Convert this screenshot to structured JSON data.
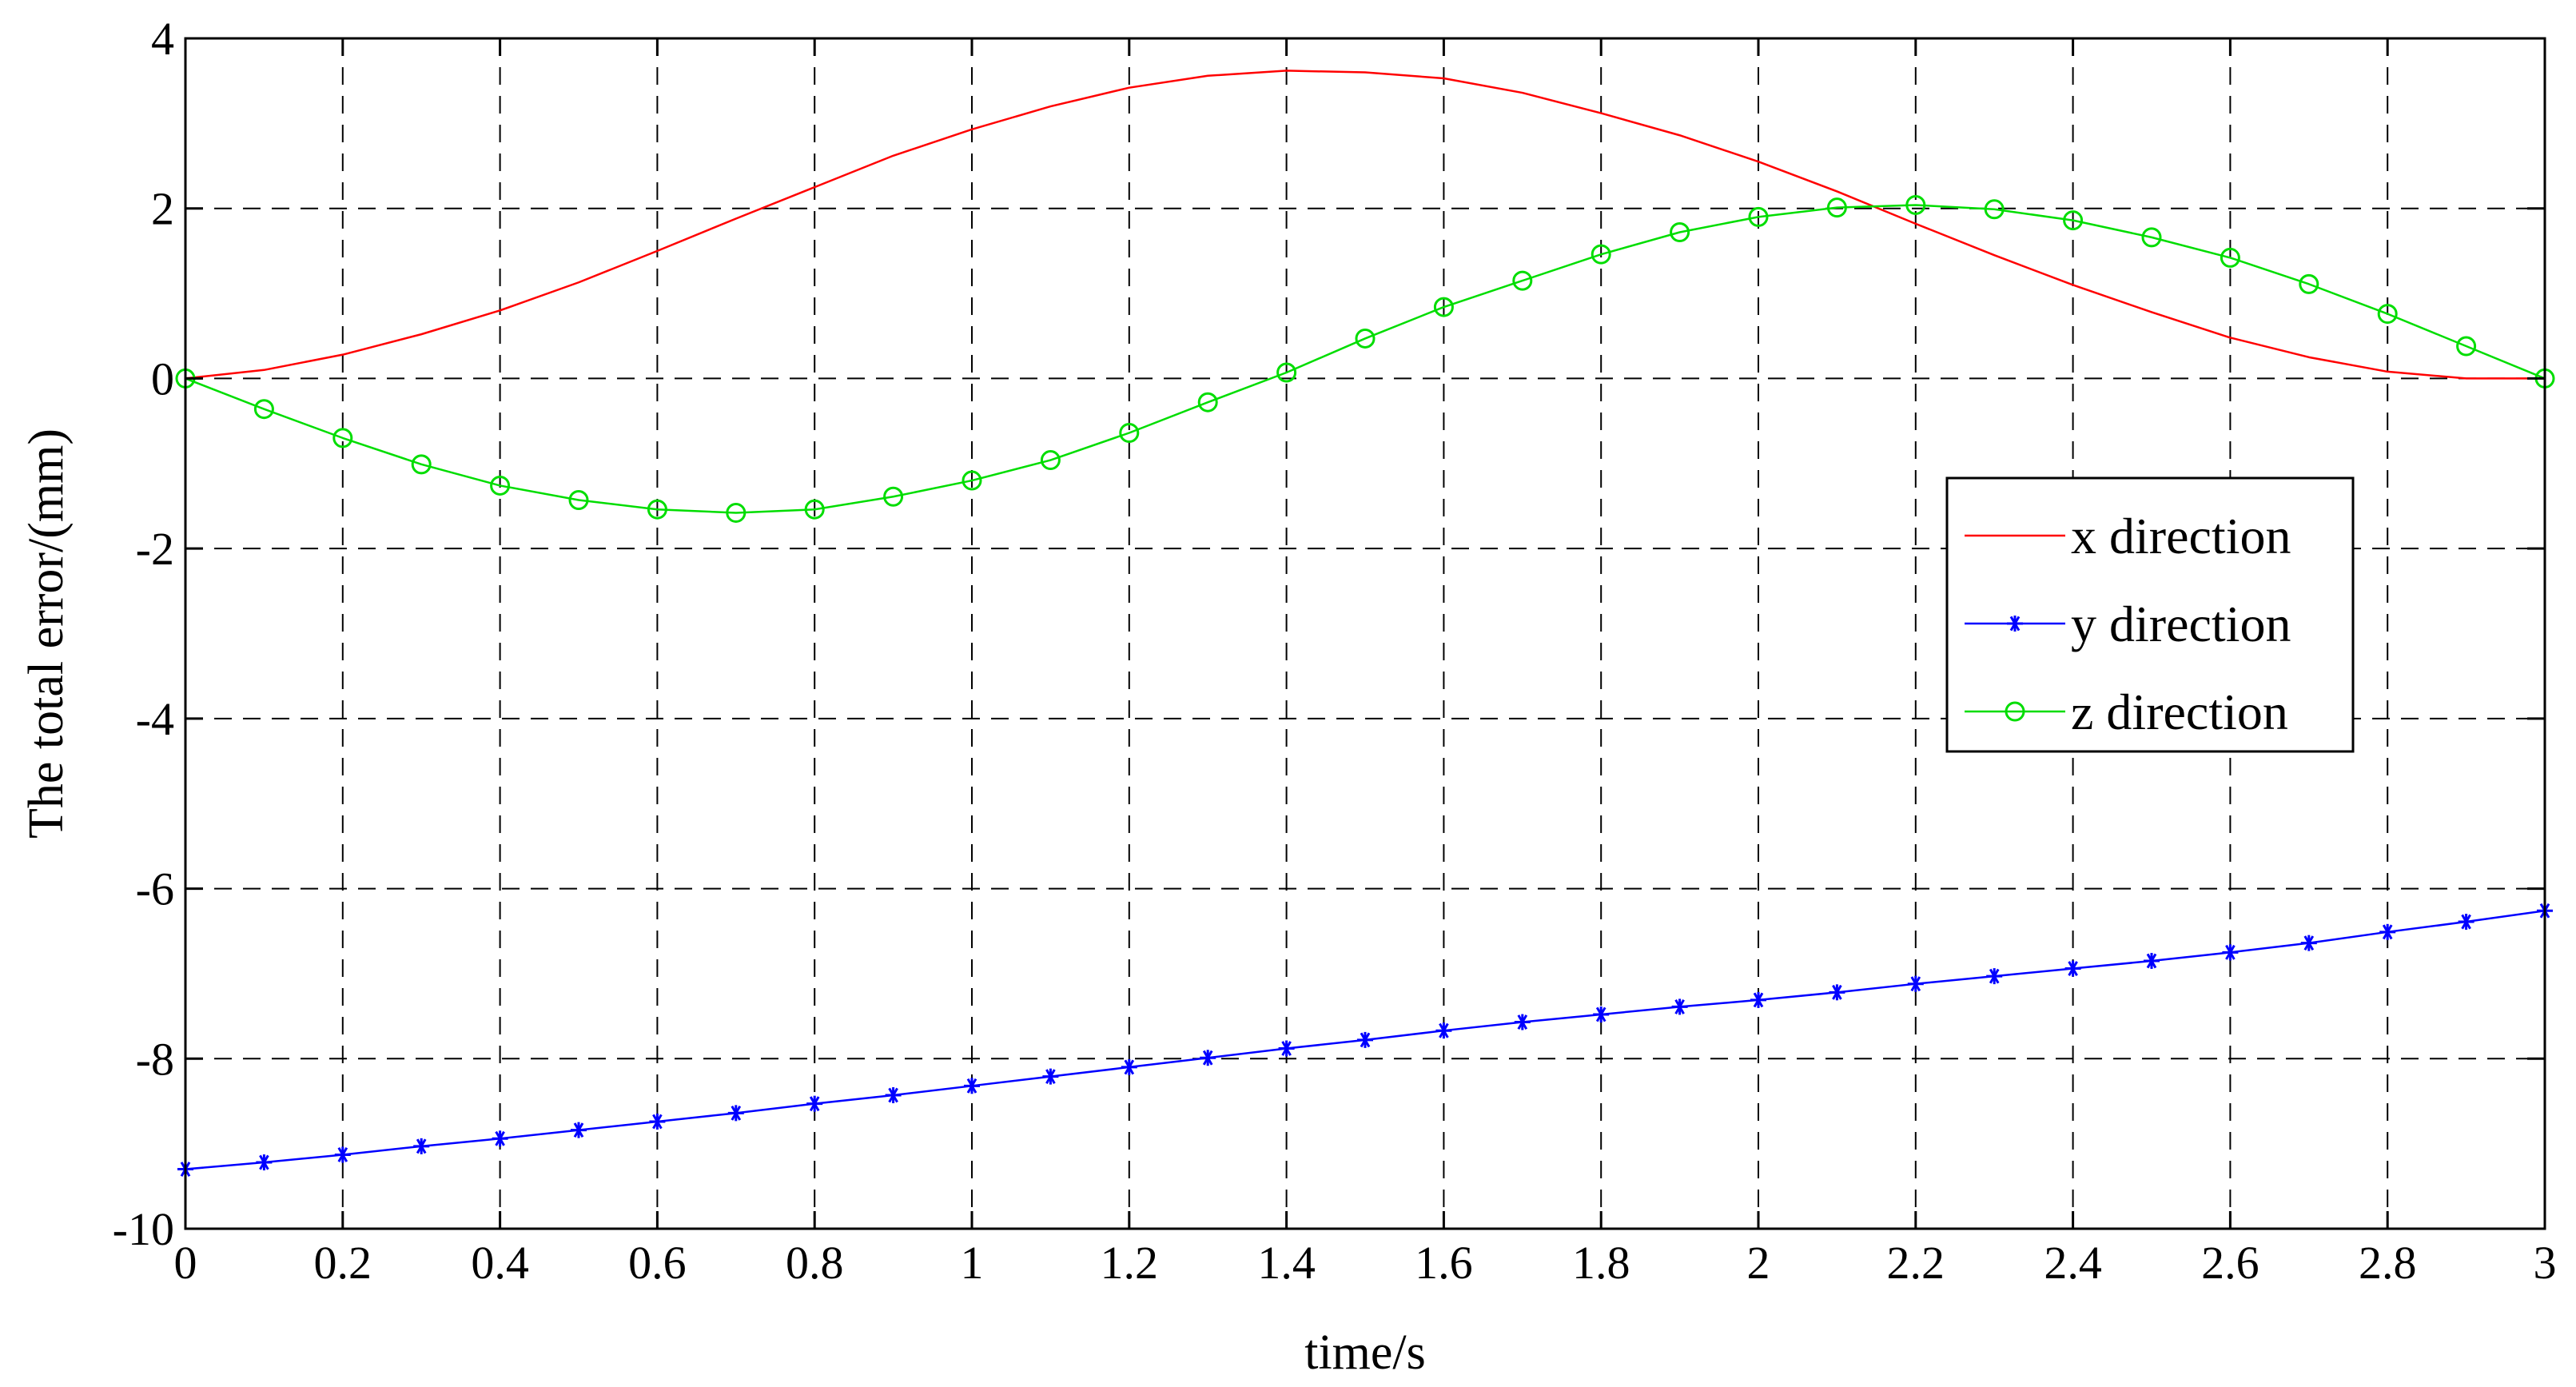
{
  "chart_data": {
    "type": "line",
    "xlabel": "time/s",
    "ylabel": "The total error/(mm)",
    "xlim": [
      0,
      3
    ],
    "ylim": [
      -10,
      4
    ],
    "grid": true,
    "grid_style": "dashed",
    "legend_position": "right",
    "xticks": [
      0,
      0.2,
      0.4,
      0.6,
      0.8,
      1,
      1.2,
      1.4,
      1.6,
      1.8,
      2,
      2.2,
      2.4,
      2.6,
      2.8,
      3
    ],
    "xtick_labels": [
      "0",
      "0.2",
      "0.4",
      "0.6",
      "0.8",
      "1",
      "1.2",
      "1.4",
      "1.6",
      "1.8",
      "2",
      "2.2",
      "2.4",
      "2.6",
      "2.8",
      "3"
    ],
    "yticks": [
      -10,
      -8,
      -6,
      -4,
      -2,
      0,
      2,
      4
    ],
    "ytick_labels": [
      "-10",
      "-8",
      "-6",
      "-4",
      "-2",
      "0",
      "2",
      "4"
    ],
    "x": [
      0,
      0.1,
      0.2,
      0.3,
      0.4,
      0.5,
      0.6,
      0.7,
      0.8,
      0.9,
      1.0,
      1.1,
      1.2,
      1.3,
      1.4,
      1.5,
      1.6,
      1.7,
      1.8,
      1.9,
      2.0,
      2.1,
      2.2,
      2.3,
      2.4,
      2.5,
      2.6,
      2.7,
      2.8,
      2.9,
      3.0
    ],
    "series": [
      {
        "name": "x direction",
        "color": "#ff0000",
        "marker": "none",
        "values": [
          0.0,
          0.1,
          0.28,
          0.52,
          0.8,
          1.13,
          1.5,
          1.88,
          2.25,
          2.62,
          2.93,
          3.2,
          3.42,
          3.56,
          3.62,
          3.6,
          3.53,
          3.36,
          3.12,
          2.86,
          2.55,
          2.2,
          1.82,
          1.45,
          1.1,
          0.78,
          0.48,
          0.25,
          0.08,
          0.0,
          0.0
        ]
      },
      {
        "name": "y direction",
        "color": "#0000ff",
        "marker": "star",
        "values": [
          -9.3,
          -9.22,
          -9.13,
          -9.03,
          -8.94,
          -8.84,
          -8.74,
          -8.64,
          -8.53,
          -8.43,
          -8.32,
          -8.21,
          -8.1,
          -7.99,
          -7.88,
          -7.78,
          -7.67,
          -7.57,
          -7.48,
          -7.39,
          -7.31,
          -7.22,
          -7.12,
          -7.03,
          -6.94,
          -6.85,
          -6.75,
          -6.64,
          -6.51,
          -6.39,
          -6.26
        ]
      },
      {
        "name": "z direction",
        "color": "#00dd00",
        "marker": "circle",
        "values": [
          0.0,
          -0.36,
          -0.7,
          -1.01,
          -1.26,
          -1.43,
          -1.54,
          -1.58,
          -1.54,
          -1.39,
          -1.2,
          -0.96,
          -0.64,
          -0.28,
          0.07,
          0.47,
          0.84,
          1.15,
          1.46,
          1.72,
          1.9,
          2.01,
          2.04,
          1.99,
          1.86,
          1.66,
          1.42,
          1.11,
          0.76,
          0.38,
          0.0
        ]
      }
    ]
  }
}
